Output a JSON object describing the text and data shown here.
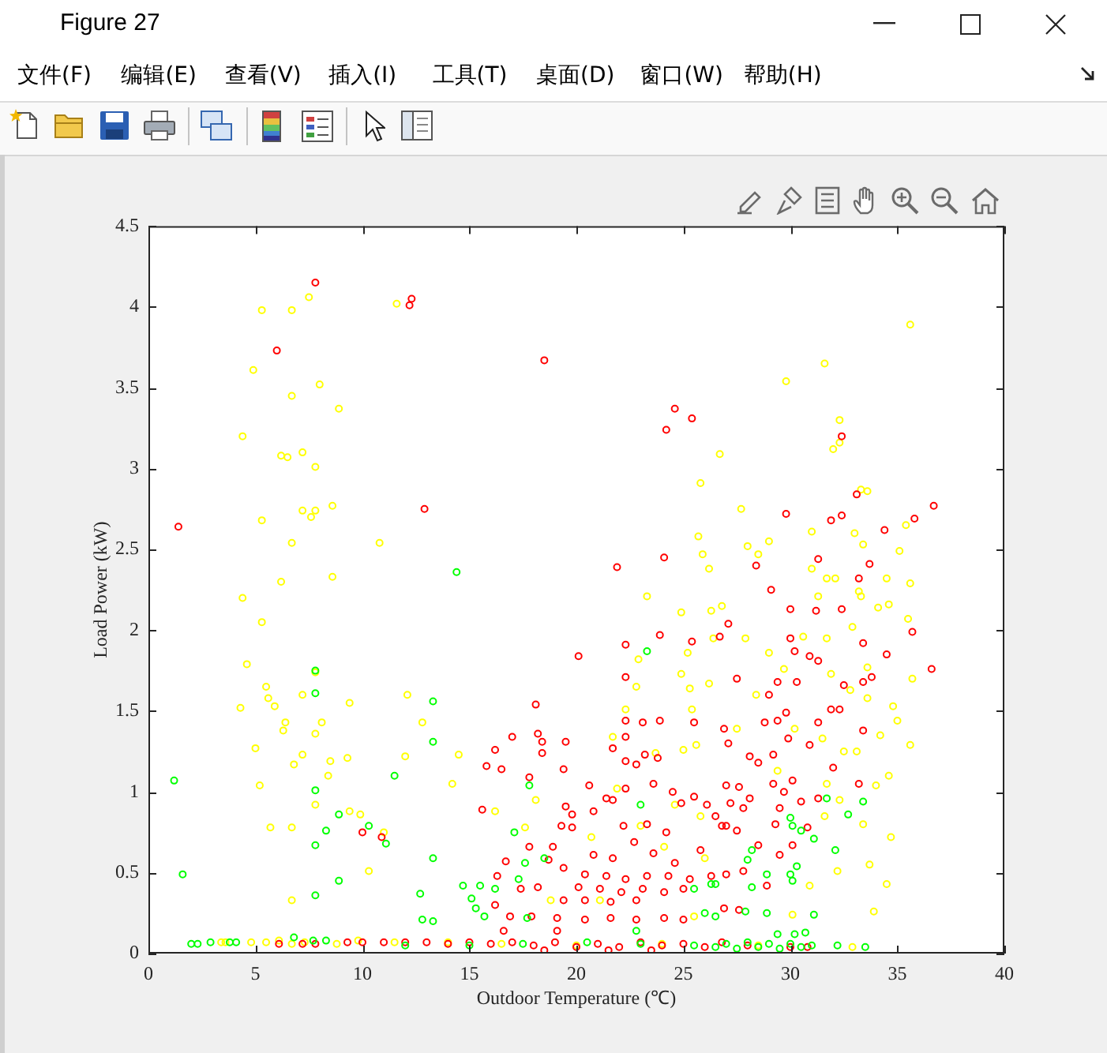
{
  "chart_data": {
    "type": "scatter",
    "title": "Figure 27",
    "annotations": [
      "文件(F)",
      "编辑(E)",
      "查看(V)",
      "插入(I)",
      "工具(T)",
      "桌面(D)",
      "窗口(W)",
      "帮助(H)"
    ],
    "xlabel": "Outdoor Temperature (℃)",
    "ylabel": "Load Power (kW)",
    "xlim": [
      0,
      40
    ],
    "xticks": [
      0,
      5,
      10,
      15,
      20,
      25,
      30,
      35,
      40
    ],
    "ylim": [
      0,
      4.5
    ],
    "yticks": [
      0,
      0.5,
      1,
      1.5,
      2,
      2.5,
      3,
      3.5,
      4,
      4.5
    ],
    "marker": "circle",
    "series": [
      {
        "color": "#ffff00",
        "x": [
          7.5,
          5.3,
          6.7,
          11.6,
          4.9,
          8.0,
          6.7,
          8.9,
          4.4,
          6.2,
          6.5,
          7.2,
          7.8,
          7.2,
          7.8,
          7.6,
          8.6,
          5.3,
          6.7,
          10.8,
          8.6,
          6.2,
          4.4,
          5.3,
          4.6,
          5.5,
          5.6,
          5.9,
          4.3,
          7.2,
          7.8,
          9.4,
          12.1,
          12.8,
          6.4,
          6.3,
          8.1,
          7.8,
          5.0,
          7.2,
          6.8,
          8.5,
          9.3,
          12.0,
          8.4,
          5.2,
          7.8,
          9.4,
          9.9,
          5.7,
          6.7,
          11.0,
          10.3,
          6.7,
          3.4,
          3.6,
          4.8,
          5.5,
          6.1,
          6.7,
          7.3,
          8.8,
          9.8,
          11.5,
          14.0,
          16.5,
          20.0,
          24.0,
          28.5,
          32.9,
          14.5,
          14.2,
          18.1,
          16.2,
          17.6,
          21.9,
          23.0,
          24.6,
          25.8,
          20.7,
          24.1,
          26.0,
          18.8,
          21.1,
          25.5,
          23.3,
          24.9,
          26.3,
          26.8,
          25.2,
          26.4,
          22.9,
          24.9,
          26.2,
          22.8,
          25.3,
          22.3,
          25.4,
          21.7,
          23.7,
          25.0,
          25.6,
          26.7,
          25.8,
          25.7,
          25.9,
          26.2,
          35.6,
          31.6,
          29.8,
          32.3,
          32.3,
          32.0,
          33.3,
          33.6,
          27.7,
          35.4,
          31.0,
          33.0,
          33.4,
          35.1,
          29.0,
          28.0,
          28.5,
          31.0,
          31.7,
          32.1,
          34.5,
          35.6,
          31.3,
          33.3,
          33.2,
          34.1,
          34.6,
          35.5,
          32.9,
          31.7,
          30.6,
          29.0,
          27.9,
          33.6,
          35.7,
          31.9,
          29.7,
          28.4,
          32.8,
          33.6,
          34.8,
          35.0,
          35.6,
          27.5,
          30.2,
          31.5,
          32.5,
          33.1,
          34.2,
          29.4,
          31.7,
          34.0,
          34.6,
          32.3,
          31.6,
          33.4,
          34.7,
          32.2,
          33.7,
          30.9,
          34.5,
          30.1,
          33.9
        ],
        "values": [
          4.06,
          3.98,
          3.98,
          4.02,
          3.61,
          3.52,
          3.45,
          3.37,
          3.2,
          3.08,
          3.07,
          3.1,
          3.01,
          2.74,
          2.74,
          2.7,
          2.77,
          2.68,
          2.54,
          2.54,
          2.33,
          2.3,
          2.2,
          2.05,
          1.79,
          1.65,
          1.58,
          1.53,
          1.52,
          1.6,
          1.74,
          1.55,
          1.6,
          1.43,
          1.43,
          1.38,
          1.43,
          1.36,
          1.27,
          1.23,
          1.17,
          1.19,
          1.21,
          1.22,
          1.1,
          1.04,
          0.92,
          0.88,
          0.86,
          0.78,
          0.78,
          0.75,
          0.51,
          0.33,
          0.07,
          0.07,
          0.07,
          0.07,
          0.08,
          0.06,
          0.07,
          0.06,
          0.08,
          0.07,
          0.07,
          0.06,
          0.05,
          0.06,
          0.05,
          0.04,
          1.23,
          1.05,
          0.95,
          0.88,
          0.78,
          1.02,
          0.79,
          0.92,
          0.85,
          0.72,
          0.66,
          0.59,
          0.33,
          0.33,
          0.23,
          2.21,
          2.11,
          2.12,
          2.15,
          1.86,
          1.95,
          1.82,
          1.73,
          1.67,
          1.65,
          1.64,
          1.51,
          1.51,
          1.34,
          1.24,
          1.26,
          1.29,
          3.09,
          2.91,
          2.58,
          2.47,
          2.38,
          3.89,
          3.65,
          3.54,
          3.3,
          3.16,
          3.12,
          2.87,
          2.86,
          2.75,
          2.65,
          2.61,
          2.6,
          2.53,
          2.49,
          2.55,
          2.52,
          2.47,
          2.38,
          2.32,
          2.32,
          2.32,
          2.29,
          2.21,
          2.21,
          2.24,
          2.14,
          2.16,
          2.07,
          2.02,
          1.95,
          1.96,
          1.86,
          1.95,
          1.77,
          1.7,
          1.73,
          1.76,
          1.6,
          1.63,
          1.58,
          1.53,
          1.44,
          1.29,
          1.39,
          1.39,
          1.33,
          1.25,
          1.25,
          1.35,
          1.13,
          1.05,
          1.04,
          1.1,
          0.95,
          0.85,
          0.8,
          0.72,
          0.51,
          0.55,
          0.42,
          0.43,
          0.24,
          0.26
        ]
      },
      {
        "color": "#ff0000",
        "x": [
          7.8,
          12.3,
          12.2,
          6.0,
          12.9,
          1.4,
          18.5,
          24.6,
          25.4,
          24.2,
          24.1,
          21.9,
          32.4,
          33.1,
          36.7,
          29.8,
          31.9,
          32.4,
          35.8,
          34.4,
          31.3,
          33.7,
          28.4,
          33.2,
          29.1,
          30.0,
          31.2,
          32.4,
          27.1,
          26.7,
          30.0,
          33.4,
          35.7,
          34.5,
          36.6,
          30.2,
          31.3,
          30.9,
          27.5,
          29.4,
          30.3,
          32.5,
          33.4,
          33.8,
          29.0,
          29.8,
          31.9,
          32.3,
          26.9,
          28.8,
          29.4,
          31.3,
          33.4,
          29.9,
          30.9,
          27.1,
          28.1,
          28.5,
          29.2,
          32.0,
          33.2,
          27.0,
          27.6,
          29.2,
          30.1,
          29.7,
          28.1,
          30.5,
          27.2,
          31.3,
          29.5,
          27.8,
          26.5,
          27.0,
          29.3,
          30.8,
          27.5,
          28.5,
          30.1,
          29.5,
          27.0,
          27.8,
          28.9,
          26.9,
          27.6,
          10.0,
          10.9,
          20.1,
          22.3,
          23.9,
          25.4,
          22.3,
          18.1,
          17.0,
          18.2,
          18.4,
          19.5,
          16.2,
          18.4,
          15.8,
          16.5,
          17.8,
          19.4,
          22.3,
          23.1,
          23.9,
          25.5,
          22.3,
          21.7,
          22.3,
          23.2,
          23.8,
          22.8,
          20.6,
          21.4,
          21.7,
          22.3,
          23.6,
          24.5,
          24.9,
          25.5,
          26.1,
          15.6,
          19.5,
          19.8,
          20.8,
          19.3,
          19.8,
          22.2,
          23.3,
          24.2,
          26.8,
          17.8,
          18.9,
          20.8,
          21.7,
          22.7,
          23.6,
          24.6,
          25.8,
          16.7,
          18.7,
          16.3,
          19.4,
          20.4,
          21.4,
          22.3,
          23.3,
          24.3,
          25.3,
          26.3,
          17.4,
          18.2,
          20.1,
          21.1,
          22.1,
          23.1,
          24.1,
          25.0,
          19.4,
          20.4,
          21.6,
          22.8,
          16.2,
          16.9,
          17.9,
          19.1,
          20.4,
          21.6,
          22.8,
          24.1,
          25.0,
          16.6,
          19.1,
          6.1,
          7.2,
          7.8,
          9.3,
          10.0,
          11.0,
          12.0,
          13.0,
          14.0,
          15.0,
          16.0,
          17.0,
          18.0,
          19.0,
          20.0,
          21.0,
          22.0,
          23.0,
          24.0,
          25.0,
          26.0,
          26.8,
          28.0,
          30.0,
          30.8,
          18.5,
          21.5,
          23.5
        ],
        "values": [
          4.15,
          4.05,
          4.01,
          3.73,
          2.75,
          2.64,
          3.67,
          3.37,
          3.31,
          3.24,
          2.45,
          2.39,
          3.2,
          2.84,
          2.77,
          2.72,
          2.68,
          2.71,
          2.69,
          2.62,
          2.44,
          2.41,
          2.4,
          2.32,
          2.25,
          2.13,
          2.12,
          2.13,
          2.04,
          1.96,
          1.95,
          1.92,
          1.99,
          1.85,
          1.76,
          1.87,
          1.81,
          1.84,
          1.7,
          1.68,
          1.68,
          1.66,
          1.68,
          1.71,
          1.6,
          1.49,
          1.51,
          1.51,
          1.39,
          1.43,
          1.44,
          1.43,
          1.38,
          1.33,
          1.29,
          1.3,
          1.22,
          1.18,
          1.23,
          1.15,
          1.05,
          1.04,
          1.03,
          1.05,
          1.07,
          1.0,
          0.96,
          0.94,
          0.93,
          0.96,
          0.9,
          0.9,
          0.85,
          0.79,
          0.8,
          0.78,
          0.76,
          0.67,
          0.67,
          0.61,
          0.49,
          0.51,
          0.42,
          0.28,
          0.27,
          0.75,
          0.72,
          1.84,
          1.91,
          1.97,
          1.93,
          1.71,
          1.54,
          1.34,
          1.36,
          1.31,
          1.31,
          1.26,
          1.24,
          1.16,
          1.14,
          1.09,
          1.14,
          1.44,
          1.43,
          1.44,
          1.43,
          1.34,
          1.27,
          1.19,
          1.23,
          1.21,
          1.17,
          1.04,
          0.96,
          0.95,
          1.02,
          1.05,
          1.0,
          0.93,
          0.97,
          0.92,
          0.89,
          0.91,
          0.86,
          0.88,
          0.79,
          0.78,
          0.79,
          0.8,
          0.75,
          0.79,
          0.66,
          0.66,
          0.61,
          0.59,
          0.69,
          0.62,
          0.56,
          0.64,
          0.57,
          0.58,
          0.48,
          0.53,
          0.49,
          0.48,
          0.46,
          0.48,
          0.48,
          0.46,
          0.48,
          0.4,
          0.41,
          0.41,
          0.4,
          0.38,
          0.4,
          0.38,
          0.4,
          0.33,
          0.33,
          0.32,
          0.33,
          0.3,
          0.23,
          0.23,
          0.22,
          0.21,
          0.22,
          0.21,
          0.22,
          0.21,
          0.14,
          0.14,
          0.06,
          0.06,
          0.06,
          0.07,
          0.07,
          0.07,
          0.07,
          0.07,
          0.06,
          0.07,
          0.06,
          0.07,
          0.05,
          0.07,
          0.04,
          0.06,
          0.04,
          0.07,
          0.05,
          0.06,
          0.04,
          0.07,
          0.05,
          0.04,
          0.04,
          0.02,
          0.02,
          0.02
        ]
      },
      {
        "color": "#00ff00",
        "x": [
          1.2,
          1.6,
          7.8,
          7.8,
          13.3,
          13.3,
          11.5,
          7.8,
          8.9,
          10.3,
          8.3,
          11.1,
          7.8,
          13.3,
          8.9,
          7.8,
          12.7,
          12.8,
          13.3,
          6.8,
          14.4,
          2.0,
          2.3,
          2.9,
          3.8,
          4.1,
          7.7,
          8.3,
          23.3,
          17.8,
          17.1,
          14.7,
          15.5,
          16.2,
          17.3,
          17.6,
          18.5,
          15.1,
          15.3,
          15.7,
          17.7,
          25.5,
          26.3,
          26.0,
          22.8,
          23.0,
          31.7,
          32.7,
          33.4,
          32.1,
          30.0,
          30.1,
          30.5,
          31.1,
          28.2,
          28.0,
          28.9,
          30.0,
          30.3,
          28.2,
          26.5,
          30.1,
          31.1,
          28.9,
          27.9,
          26.5,
          29.4,
          30.2,
          30.7,
          32.2,
          33.5,
          12.0,
          15.0,
          17.5,
          20.5,
          23.0,
          25.5,
          26.5,
          27.0,
          27.5,
          28.0,
          28.5,
          29.0,
          29.5,
          30.0,
          30.5,
          31.0
        ],
        "values": [
          1.07,
          0.49,
          1.75,
          1.61,
          1.56,
          1.31,
          1.1,
          1.01,
          0.86,
          0.79,
          0.76,
          0.68,
          0.67,
          0.59,
          0.45,
          0.36,
          0.37,
          0.21,
          0.2,
          0.1,
          2.36,
          0.06,
          0.06,
          0.07,
          0.07,
          0.07,
          0.08,
          0.08,
          1.87,
          1.04,
          0.75,
          0.42,
          0.42,
          0.4,
          0.46,
          0.56,
          0.59,
          0.34,
          0.28,
          0.23,
          0.22,
          0.4,
          0.43,
          0.25,
          0.14,
          0.92,
          0.96,
          0.86,
          0.94,
          0.64,
          0.84,
          0.79,
          0.76,
          0.71,
          0.64,
          0.58,
          0.49,
          0.49,
          0.54,
          0.41,
          0.43,
          0.45,
          0.24,
          0.25,
          0.26,
          0.23,
          0.12,
          0.12,
          0.13,
          0.05,
          0.04,
          0.05,
          0.05,
          0.06,
          0.07,
          0.06,
          0.05,
          0.04,
          0.06,
          0.03,
          0.07,
          0.04,
          0.06,
          0.03,
          0.06,
          0.04,
          0.05
        ]
      }
    ]
  }
}
